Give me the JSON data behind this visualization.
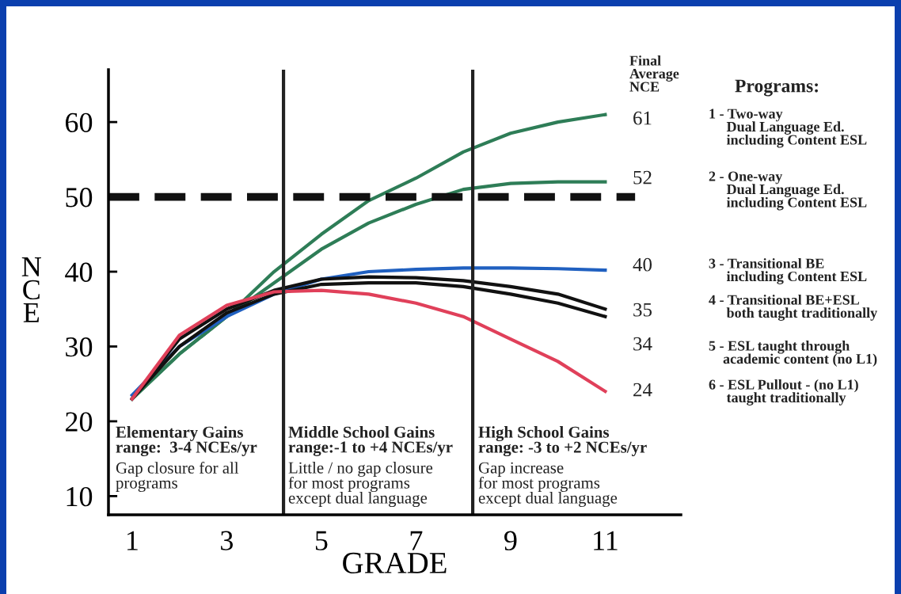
{
  "chart_data": {
    "type": "line",
    "xlabel": "GRADE",
    "ylabel": "NCE",
    "x": [
      1,
      2,
      3,
      4,
      5,
      6,
      7,
      8,
      9,
      10,
      11
    ],
    "series": [
      {
        "color": "#2e7d57",
        "values": [
          23,
          29,
          34,
          40,
          45,
          49.5,
          52.5,
          56,
          58.5,
          60,
          61
        ]
      },
      {
        "color": "#2e7d57",
        "values": [
          23,
          29,
          34,
          38.5,
          43,
          46.5,
          49,
          51,
          51.8,
          52,
          52
        ]
      },
      {
        "color": "#2060c0",
        "values": [
          23.5,
          30,
          34,
          37,
          39,
          40,
          40.3,
          40.5,
          40.5,
          40.4,
          40.2
        ]
      },
      {
        "color": "#111111",
        "values": [
          23,
          31,
          35,
          37.5,
          39,
          39.3,
          39.2,
          38.8,
          38,
          37,
          35
        ]
      },
      {
        "color": "#111111",
        "values": [
          23,
          30,
          34.5,
          37,
          38.3,
          38.5,
          38.5,
          38,
          37,
          35.8,
          34
        ]
      },
      {
        "color": "#e0405a",
        "values": [
          23,
          31.5,
          35.5,
          37.3,
          37.5,
          37,
          35.8,
          34,
          31,
          28,
          24
        ]
      }
    ],
    "xlim": [
      0.5,
      12.6
    ],
    "ylim": [
      7.5,
      67
    ],
    "xticks": [
      1,
      3,
      5,
      7,
      9,
      11
    ],
    "yticks": [
      10,
      20,
      30,
      40,
      50,
      60
    ],
    "ref_lines": [
      {
        "axis": "y",
        "value": 50,
        "color": "#111111",
        "line_style": "dashed"
      },
      {
        "axis": "x",
        "value": 4.2,
        "color": "#222222"
      },
      {
        "axis": "x",
        "value": 8.2,
        "color": "#222222"
      }
    ],
    "marker": "none",
    "line_style": "solid",
    "annotations": [
      "Final\nAverage\nNCE",
      "Programs:",
      "61",
      "52",
      "40",
      "35",
      "34",
      "24",
      "1 - Two-way\n     Dual Language Ed.\n     including Content ESL",
      "2 - One-way\n     Dual Language Ed.\n     including Content ESL",
      "3 - Transitional BE\n     including Content ESL",
      "4 - Transitional BE+ESL\n     both taught traditionally",
      "5 - ESL taught through\n    academic content (no L1)",
      "6 - ESL Pullout - (no L1)\n     taught traditionally",
      "Elementary Gains\nrange:  3-4 NCEs/yr",
      "Gap closure for all\nprograms",
      "Middle School Gains\nrange:-1 to +4 NCEs/yr",
      "Little / no gap closure\nfor most programs\nexcept dual language",
      "High School Gains\nrange: -3 to +2 NCEs/yr",
      "Gap increase\nfor most programs\nexcept dual language"
    ]
  }
}
